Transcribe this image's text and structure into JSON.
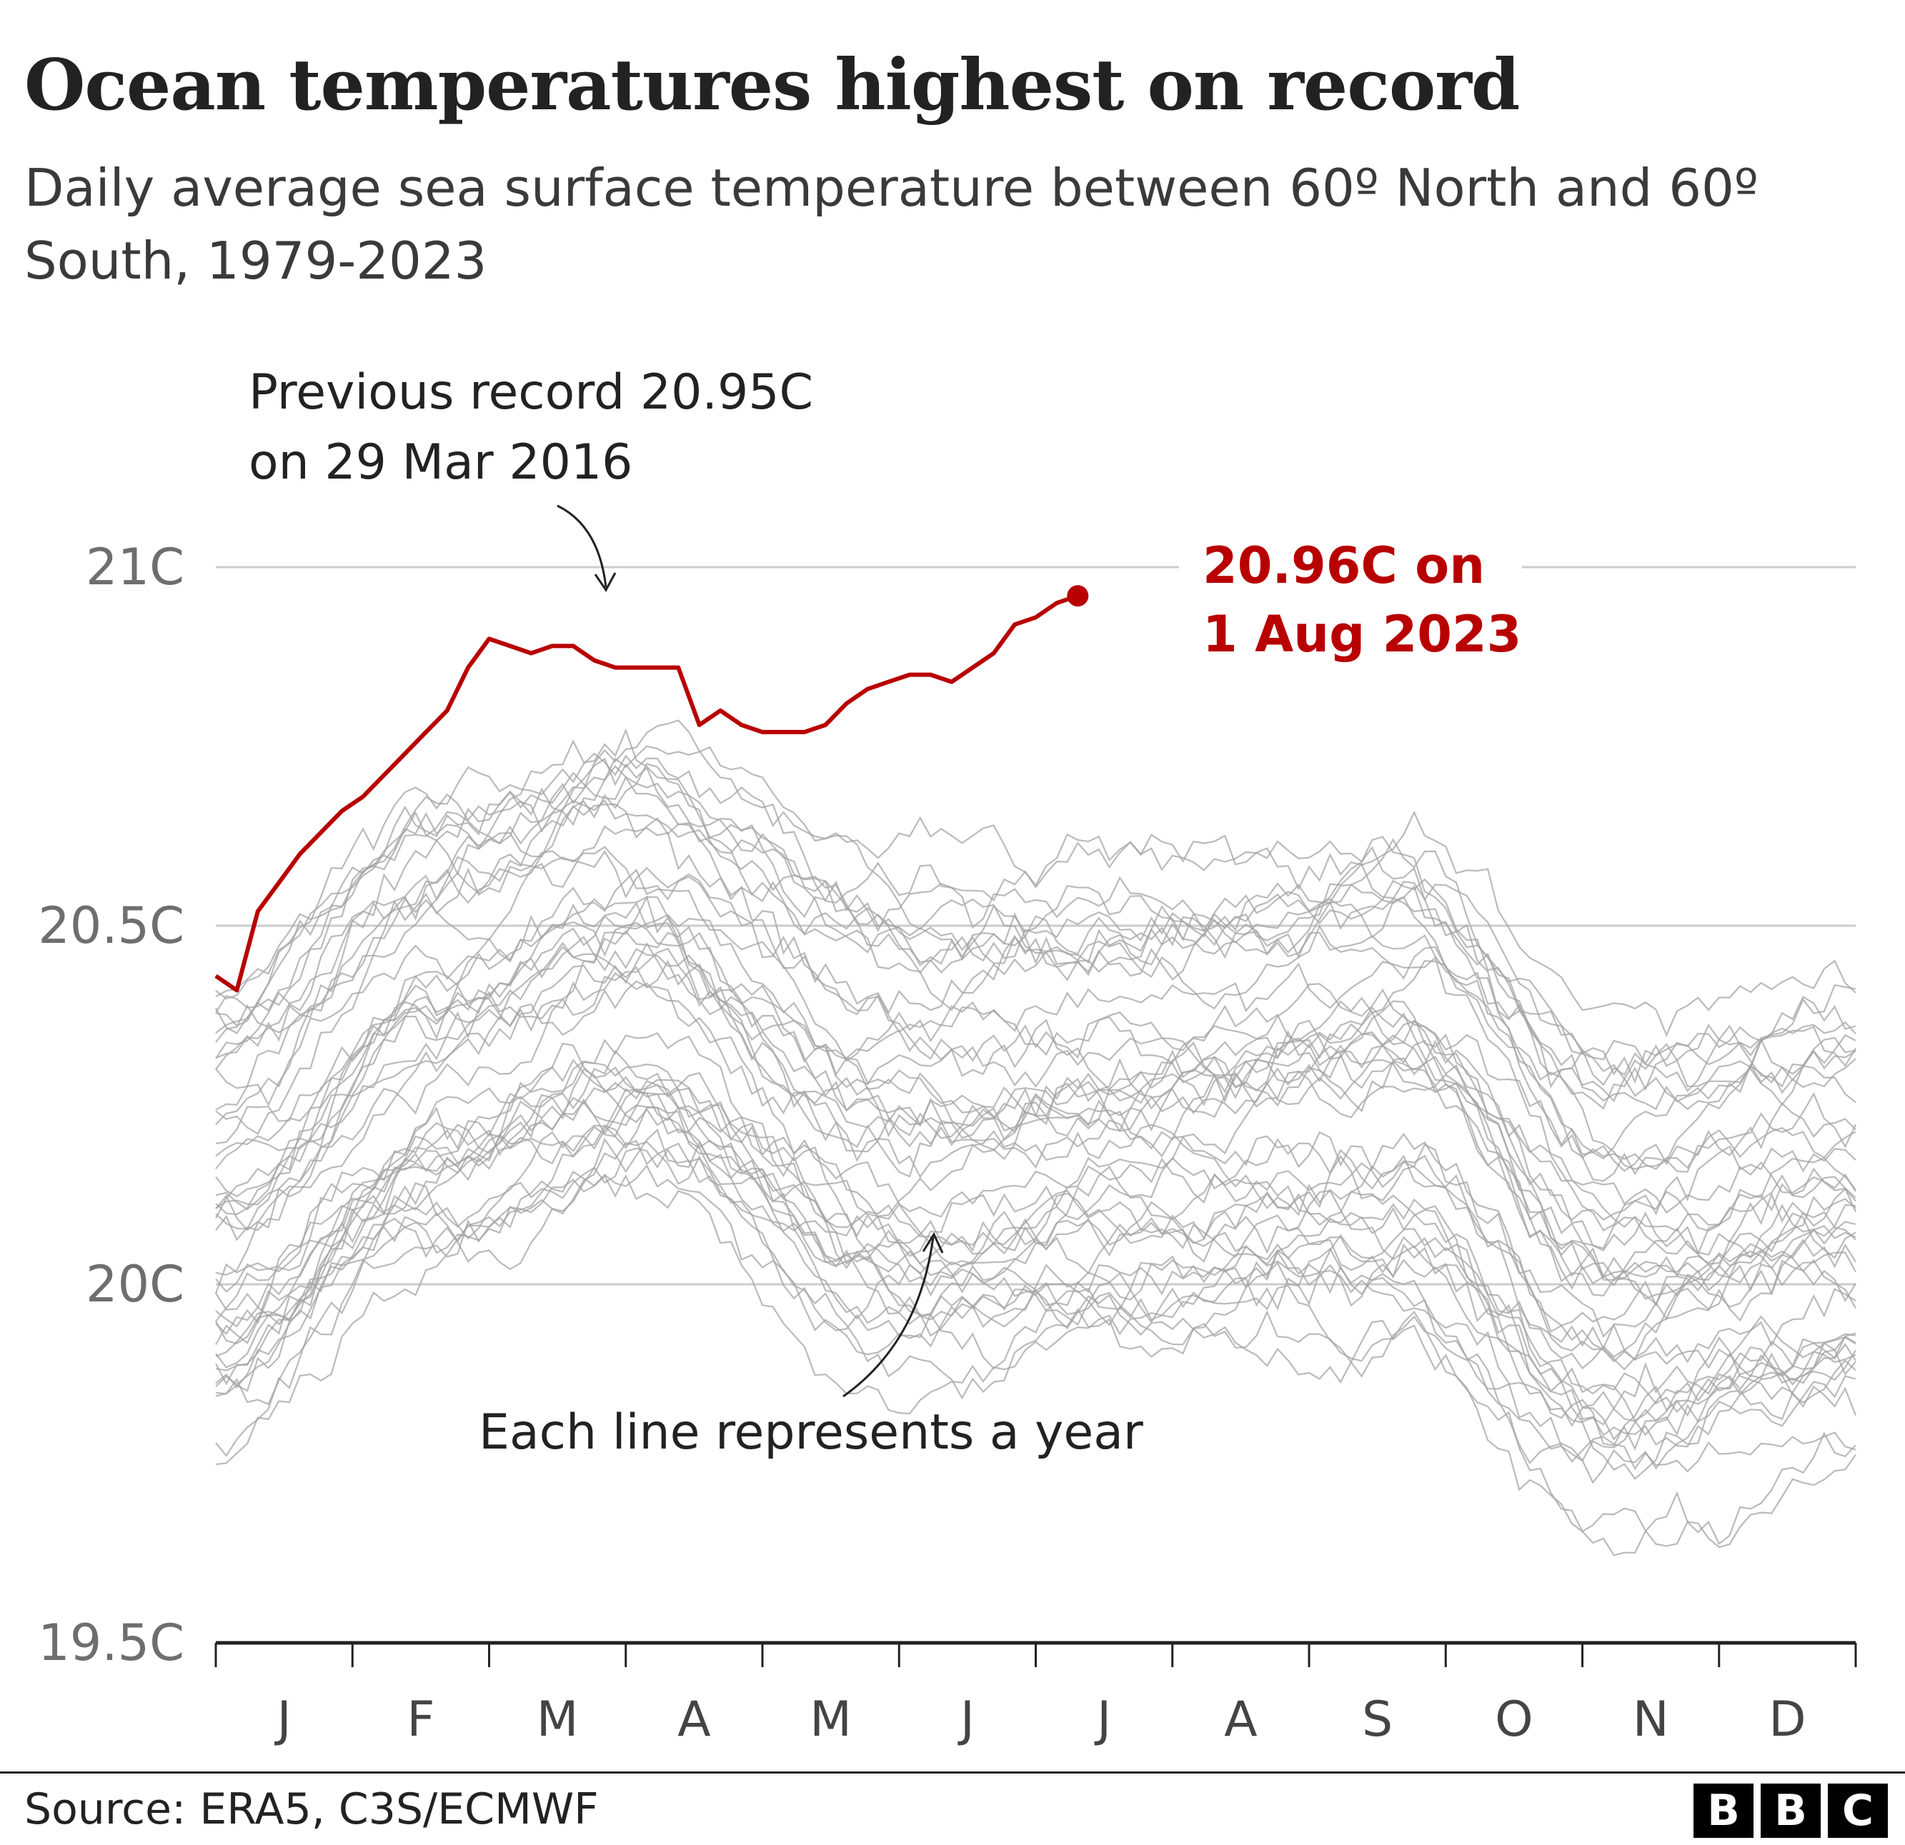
{
  "title": "Ocean temperatures highest on record",
  "subtitle": "Daily average sea surface temperature between 60º North and 60º South, 1979-2023",
  "source": "Source: ERA5, C3S/ECMWF",
  "logo": [
    "B",
    "B",
    "C"
  ],
  "colors": {
    "highlight": "#b80000",
    "other_years": "#a3a3a3",
    "text": "#222222",
    "grid": "#cccccc"
  },
  "chart_data": {
    "type": "line",
    "x_unit": "month",
    "x_labels": [
      "J",
      "F",
      "M",
      "A",
      "M",
      "J",
      "J",
      "A",
      "S",
      "O",
      "N",
      "D"
    ],
    "y_ticks": [
      19.5,
      20,
      20.5,
      21
    ],
    "y_tick_labels": [
      "19.5C",
      "20C",
      "20.5C",
      "21C"
    ],
    "ylim": [
      19.5,
      21.0
    ],
    "grid": true,
    "highlight_series": {
      "name": "2023",
      "points": [
        [
          0,
          20.43
        ],
        [
          2,
          20.41
        ],
        [
          4,
          20.52
        ],
        [
          6,
          20.56
        ],
        [
          8,
          20.6
        ],
        [
          10,
          20.63
        ],
        [
          12,
          20.66
        ],
        [
          14,
          20.68
        ],
        [
          16,
          20.71
        ],
        [
          18,
          20.74
        ],
        [
          20,
          20.77
        ],
        [
          22,
          20.8
        ],
        [
          24,
          20.86
        ],
        [
          26,
          20.9
        ],
        [
          28,
          20.89
        ],
        [
          30,
          20.88
        ],
        [
          32,
          20.89
        ],
        [
          34,
          20.89
        ],
        [
          36,
          20.87
        ],
        [
          38,
          20.86
        ],
        [
          40,
          20.86
        ],
        [
          42,
          20.86
        ],
        [
          44,
          20.86
        ],
        [
          46,
          20.78
        ],
        [
          48,
          20.8
        ],
        [
          50,
          20.78
        ],
        [
          52,
          20.77
        ],
        [
          54,
          20.77
        ],
        [
          56,
          20.77
        ],
        [
          58,
          20.78
        ],
        [
          60,
          20.81
        ],
        [
          62,
          20.83
        ],
        [
          64,
          20.84
        ],
        [
          66,
          20.85
        ],
        [
          68,
          20.85
        ],
        [
          70,
          20.84
        ],
        [
          72,
          20.86
        ],
        [
          74,
          20.88
        ],
        [
          76,
          20.92
        ],
        [
          78,
          20.93
        ],
        [
          80,
          20.95
        ],
        [
          82,
          20.96
        ]
      ],
      "end_label_line1": "20.96C on",
      "end_label_line2": "1 Aug 2023",
      "end_value": 20.96
    },
    "background_series_note": "44 grey lines, one per year 1979-2022",
    "annotations": {
      "previous_record_line1": "Previous record 20.95C",
      "previous_record_line2": "on 29 Mar 2016",
      "previous_record_value": 20.95,
      "each_line": "Each line represents a year"
    }
  }
}
